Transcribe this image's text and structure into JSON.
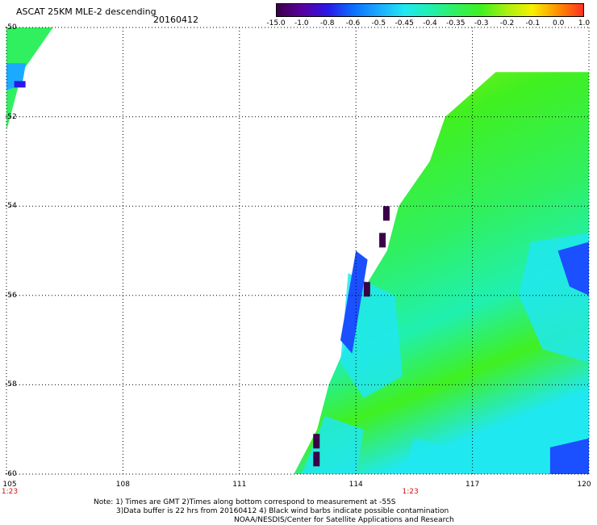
{
  "header": {
    "title": "ASCAT 25KM MLE-2 descending",
    "date": "20160412"
  },
  "colorbar": {
    "labels": [
      "-15.0",
      "-1.0",
      "-0.8",
      "-0.6",
      "-0.5",
      "-0.45",
      "-0.4",
      "-0.35",
      "-0.3",
      "-0.2",
      "-0.1",
      "0.0",
      "1.0"
    ],
    "colors": [
      "#3a0048",
      "#5a00a0",
      "#2a18e8",
      "#0a70ff",
      "#1aaaff",
      "#20e8f0",
      "#20f0b0",
      "#30f060",
      "#40f020",
      "#a8f010",
      "#f8f000",
      "#ff9000",
      "#ff3020"
    ]
  },
  "axes": {
    "lat_labels": [
      "-50",
      "-52",
      "-54",
      "-56",
      "-58",
      "-60"
    ],
    "lat_values": [
      -50,
      -52,
      -54,
      -56,
      -58,
      -60
    ],
    "lon_labels": [
      "105",
      "108",
      "111",
      "114",
      "117",
      "120"
    ],
    "lon_values": [
      105,
      108,
      111,
      114,
      117,
      120
    ],
    "lat_range": [
      -60,
      -50
    ],
    "lon_range": [
      105,
      120
    ],
    "time_labels": [
      {
        "text": "1:23",
        "lon": 105
      },
      {
        "text": "1:23",
        "lon": 115.4
      }
    ]
  },
  "swath": {
    "main_edge": [
      [
        -51.0,
        117.6
      ],
      [
        -52.0,
        116.3
      ],
      [
        -53.0,
        115.9
      ],
      [
        -54.0,
        115.1
      ],
      [
        -55.0,
        114.8
      ],
      [
        -56.0,
        114.1
      ],
      [
        -57.0,
        113.8
      ],
      [
        -58.0,
        113.3
      ],
      [
        -59.0,
        113.0
      ],
      [
        -60.0,
        112.4
      ]
    ],
    "corner_patch": [
      [
        -50.0,
        105.0
      ],
      [
        -50.0,
        106.2
      ],
      [
        -50.5,
        105.8
      ],
      [
        -51.0,
        105.4
      ],
      [
        -52.0,
        105.1
      ],
      [
        -52.3,
        105.0
      ]
    ]
  },
  "notes": {
    "line1": "Note: 1) Times are GMT 2)Times along bottom correspond to measurement at -55S",
    "line2": "3)Data buffer is 22 hrs from 20160412 4) Black wind barbs indicate possible contamination",
    "line3": "NOAA/NESDIS/Center for Satellite Applications and Research"
  }
}
